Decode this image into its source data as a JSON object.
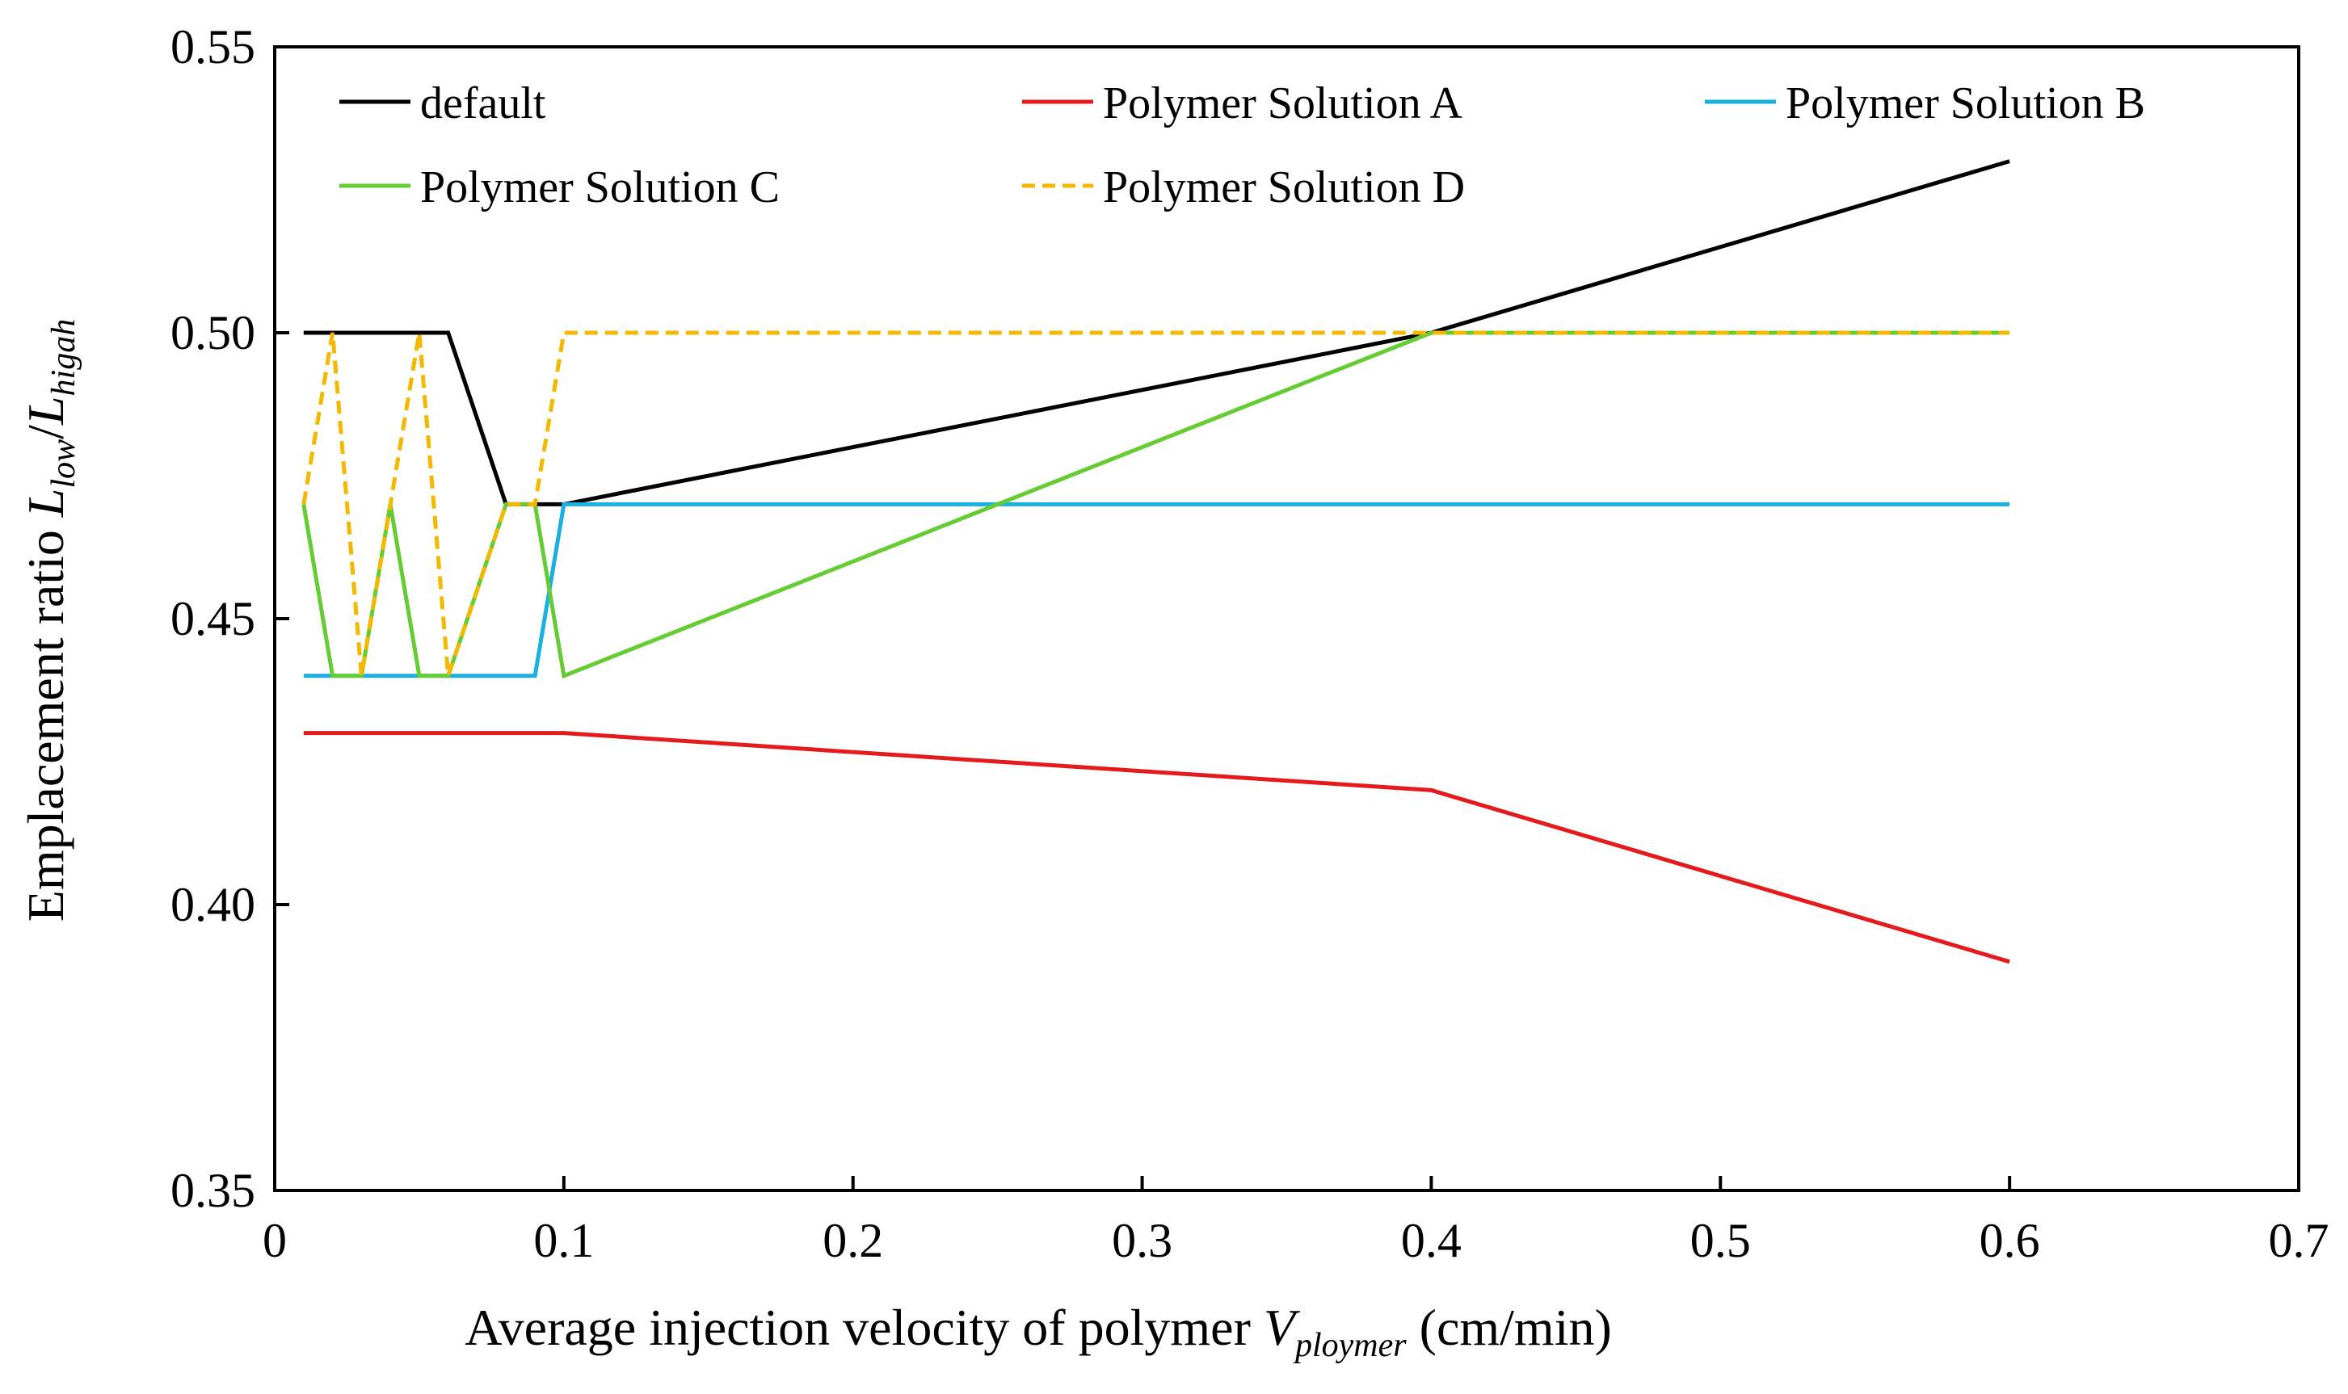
{
  "chart_data": {
    "type": "line",
    "title": "",
    "xlabel": {
      "prefix": "Average injection velocity of polymer ",
      "var": "V",
      "sub": "ploymer",
      "suffix": " (cm/min)"
    },
    "ylabel": {
      "prefix": "Emplacement ratio ",
      "var1": "L",
      "sub1": "low",
      "slash": "/",
      "var2": "L",
      "sub2": "higah"
    },
    "xlim": [
      0,
      0.7
    ],
    "ylim": [
      0.35,
      0.55
    ],
    "x_ticks": [
      0,
      0.1,
      0.2,
      0.3,
      0.4,
      0.5,
      0.6,
      0.7
    ],
    "x_tick_labels": [
      "0",
      "0.1",
      "0.2",
      "0.3",
      "0.4",
      "0.5",
      "0.6",
      "0.7"
    ],
    "y_ticks": [
      0.35,
      0.4,
      0.45,
      0.5,
      0.55
    ],
    "y_tick_labels": [
      "0.35",
      "0.40",
      "0.45",
      "0.50",
      "0.55"
    ],
    "grid": false,
    "legend_position": "top",
    "series": [
      {
        "name": "default",
        "color": "#000000",
        "dash": "solid",
        "x": [
          0.01,
          0.06,
          0.08,
          0.1,
          0.4,
          0.6
        ],
        "y": [
          0.5,
          0.5,
          0.47,
          0.47,
          0.5,
          0.53
        ]
      },
      {
        "name": "Polymer Solution A",
        "color": "#e41a1c",
        "dash": "solid",
        "x": [
          0.01,
          0.1,
          0.4,
          0.6
        ],
        "y": [
          0.43,
          0.43,
          0.42,
          0.39
        ]
      },
      {
        "name": "Polymer Solution B",
        "color": "#1ab0e0",
        "dash": "solid",
        "x": [
          0.01,
          0.09,
          0.1,
          0.6
        ],
        "y": [
          0.44,
          0.44,
          0.47,
          0.47
        ]
      },
      {
        "name": "Polymer Solution C",
        "color": "#66cc33",
        "dash": "solid",
        "x": [
          0.01,
          0.02,
          0.03,
          0.04,
          0.05,
          0.06,
          0.08,
          0.09,
          0.1,
          0.4,
          0.6
        ],
        "y": [
          0.47,
          0.44,
          0.44,
          0.47,
          0.44,
          0.44,
          0.47,
          0.47,
          0.44,
          0.5,
          0.5
        ]
      },
      {
        "name": "Polymer Solution D",
        "color": "#f5b800",
        "dash": "dashed",
        "x": [
          0.01,
          0.02,
          0.03,
          0.05,
          0.06,
          0.08,
          0.09,
          0.1,
          0.6
        ],
        "y": [
          0.47,
          0.5,
          0.44,
          0.5,
          0.44,
          0.47,
          0.47,
          0.5,
          0.5
        ]
      }
    ]
  }
}
